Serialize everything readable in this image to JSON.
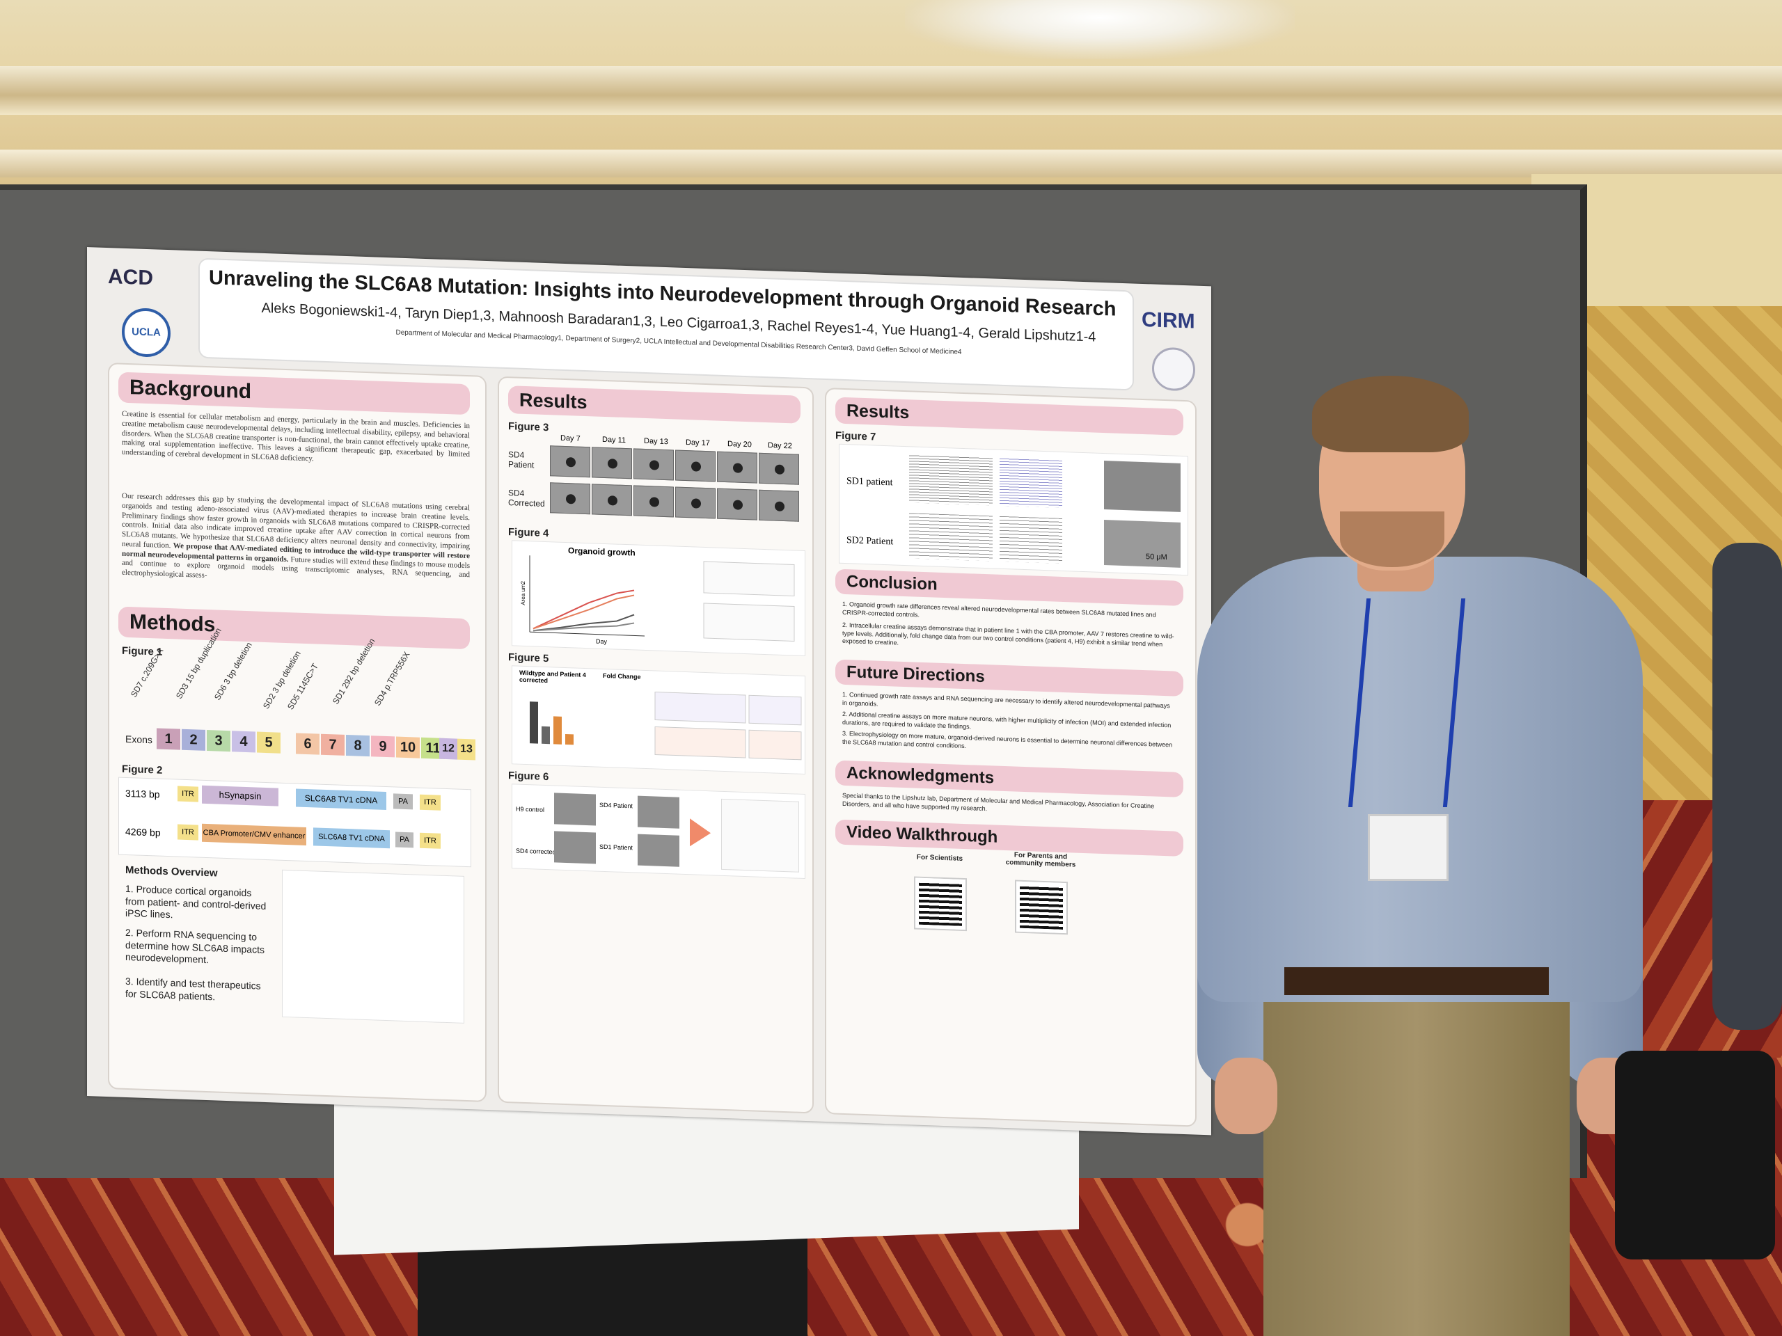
{
  "poster": {
    "title": "Unraveling the SLC6A8 Mutation: Insights into Neurodevelopment through Organoid Research",
    "authors": "Aleks Bogoniewski1-4, Taryn Diep1,3, Mahnoosh Baradaran1,3, Leo Cigarroa1,3, Rachel Reyes1-4, Yue Huang1-4, Gerald Lipshutz1-4",
    "affiliations": "Department of Molecular and Medical Pharmacology1, Department of Surgery2, UCLA Intellectual and Developmental Disabilities Research Center3, David Geffen School of Medicine4",
    "logos": {
      "acd": "ACD",
      "ucla": "UCLA",
      "cirm": "CIRM"
    },
    "background": {
      "heading": "Background",
      "p1": "Creatine is essential for cellular metabolism and energy, particularly in the brain and muscles. Deficiencies in creatine metabolism cause neurodevelopmental delays, including intellectual disability, epilepsy, and behavioral disorders. When the SLC6A8 creatine transporter is non-functional, the brain cannot effectively uptake creatine, making oral supplementation ineffective. This leaves a significant therapeutic gap, exacerbated by limited understanding of cerebral development in SLC6A8 deficiency.",
      "p2": "Our research addresses this gap by studying the developmental impact of SLC6A8 mutations using cerebral organoids and testing adeno-associated virus (AAV)-mediated therapies to increase brain creatine levels. Preliminary findings show faster growth in organoids with SLC6A8 mutations compared to CRISPR-corrected controls. Initial data also indicate improved creatine uptake after AAV correction in cortical neurons from SLC6A8 mutants. We hypothesize that SLC6A8 deficiency alters neuronal density and connectivity, impairing neural function.",
      "p2_bold": "We propose that AAV-mediated editing to introduce the wild-type transporter will restore normal neurodevelopmental patterns in organoids.",
      "p2_end": "Future studies will extend these findings to mouse models and continue to explore organoid models using transcriptomic analyses, RNA sequencing, and electrophysiological assess-"
    },
    "methods": {
      "heading": "Methods",
      "figure1": "Figure 1",
      "mutations": [
        "SD7 c.209G>A",
        "SD3 15 bp duplication",
        "SD6 3 bp deletion",
        "SD2 3 bp deletion",
        "SD5 1145C>T",
        "SD1 292 bp deletion",
        "SD4 p.TRP556X"
      ],
      "exons_label": "Exons",
      "exons": [
        "1",
        "2",
        "3",
        "4",
        "5",
        "6",
        "7",
        "8",
        "9",
        "10",
        "11",
        "12",
        "13"
      ],
      "figure2": "Figure 2",
      "construct1": {
        "size": "3113 bp",
        "itr": "ITR",
        "promoter": "hSynapsin",
        "cdna": "SLC6A8 TV1 cDNA",
        "pa": "PA",
        "itr2": "ITR"
      },
      "construct2": {
        "size": "4269 bp",
        "itr": "ITR",
        "promoter": "CBA Promoter/CMV enhancer",
        "cdna": "SLC6A8 TV1 cDNA",
        "pa": "PA",
        "itr2": "ITR"
      },
      "overview_heading": "Methods Overview",
      "overview": [
        "1. Produce cortical organoids from patient- and control-derived iPSC lines.",
        "2. Perform RNA sequencing to determine how SLC6A8 impacts neurodevelopment.",
        "3. Identify and test therapeutics for SLC6A8 patients."
      ]
    },
    "results_mid": {
      "heading": "Results",
      "figure3": "Figure 3",
      "days": [
        "Day 7",
        "Day 11",
        "Day 13",
        "Day 17",
        "Day 20",
        "Day 22"
      ],
      "row1": "SD4 Patient",
      "row2": "SD4 Corrected",
      "figure4": "Figure 4",
      "fig4_title": "Organoid growth",
      "fig4_x": "Day",
      "fig4_y": "Area um2",
      "figure5": "Figure 5",
      "fig5a": "Wildtype and Patient 4 corrected",
      "fig5b": "Fold Change",
      "figure6": "Figure 6",
      "fig6_labels": [
        "H9 control",
        "SD4 Patient",
        "SD4 corrected",
        "SD1 Patient"
      ]
    },
    "results_right": {
      "heading": "Results",
      "figure7": "Figure 7",
      "row1": "SD1 patient",
      "row2": "SD2 Patient",
      "scale": "50 μM"
    },
    "conclusion": {
      "heading": "Conclusion",
      "items": [
        "1. Organoid growth rate differences reveal altered neurodevelopmental rates between SLC6A8 mutated lines and CRISPR-corrected controls.",
        "2. Intracellular creatine assays demonstrate that in patient line 1 with the CBA promoter, AAV 7 restores creatine to wild-type levels. Additionally, fold change data from our two control conditions (patient 4, H9) exhibit a similar trend when exposed to creatine."
      ]
    },
    "future": {
      "heading": "Future Directions",
      "items": [
        "1. Continued growth rate assays and RNA sequencing are necessary to identify altered neurodevelopmental pathways in organoids.",
        "2. Additional creatine assays on more mature neurons, with higher multiplicity of infection (MOI) and extended infection durations, are required to validate the findings.",
        "3. Electrophysiology on more mature, organoid-derived neurons is essential to determine neuronal differences between the SLC6A8 mutation and control conditions."
      ]
    },
    "acknowledgments": {
      "heading": "Acknowledgments",
      "text": "Special thanks to the Lipshutz lab, Department of Molecular and Medical Pharmacology, Association for Creatine Disorders, and all who have supported my research."
    },
    "video": {
      "heading": "Video Walkthrough",
      "qr1": "For Scientists",
      "qr2": "For Parents and community members"
    }
  },
  "colors": {
    "header_pink": "#f0c9d3",
    "panel_bg": "#fbf9f6",
    "board_gray": "#5f5f5d",
    "lanyard_blue": "#1f3fae"
  }
}
